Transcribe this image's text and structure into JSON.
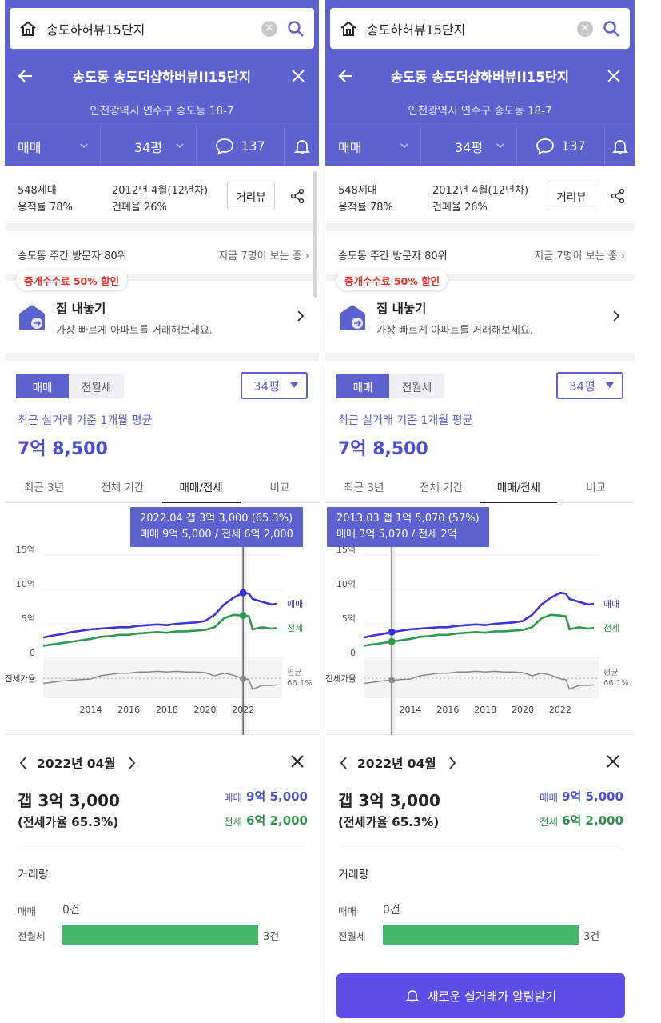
{
  "search": {
    "query": "송도하허뷰15단지"
  },
  "header": {
    "title": "송도동 송도더샵하버뷰II15단지",
    "address": "인천광역시 연수구 송도동 18-7"
  },
  "filterbar": {
    "trade": "매매",
    "size": "34평",
    "comments": "137"
  },
  "info": {
    "households": "548세대",
    "far": "용적률 78%",
    "built": "2012년 4월(12년차)",
    "bcr": "건폐율 26%",
    "distance_btn": "거리뷰"
  },
  "visitor": {
    "rank": "송도동 주간 방문자 80위",
    "viewing": "지금 7명이 보는 중"
  },
  "sell": {
    "promo": "중개수수료 50% 할인",
    "title": "집 내놓기",
    "subtitle": "가장 빠르게 아파트를 거래해보세요."
  },
  "price": {
    "seg_on": "매매",
    "seg_off": "전월세",
    "size_select": "34평",
    "avg_label": "최근 실거래 기준 1개월 평균",
    "avg_value": "7억 8,500"
  },
  "tabs": [
    "최근 3년",
    "전체 기간",
    "매매/전세",
    "비교"
  ],
  "tooltips": {
    "left": {
      "line1": "2022.04  갭 3억 3,000 (65.3%)",
      "line2": "매매 9억 5,000 / 전세 6억 2,000"
    },
    "right": {
      "line1": "2013.03  갭 1억 5,070 (57%)",
      "line2": "매매 3억 5,070 / 전세 2억"
    }
  },
  "chart_labels": {
    "sale": "매매",
    "jeonse": "전세",
    "ratio": "전세가율",
    "avg": "평균",
    "avg_value": "66.1%"
  },
  "chart_data": {
    "type": "line",
    "x": [
      2011.5,
      2012,
      2012.5,
      2013,
      2013.5,
      2014,
      2014.5,
      2015,
      2015.5,
      2016,
      2016.5,
      2017,
      2017.5,
      2018,
      2018.5,
      2019,
      2019.5,
      2020,
      2020.5,
      2021,
      2021.5,
      2022,
      2022.3,
      2022.5,
      2023,
      2023.5,
      2023.8
    ],
    "ylabel": "",
    "ylim": [
      0,
      15
    ],
    "y_ticks": [
      {
        "value": 0,
        "label": "0"
      },
      {
        "value": 5,
        "label": "5억"
      },
      {
        "value": 10,
        "label": "10억"
      },
      {
        "value": 15,
        "label": "15억"
      }
    ],
    "x_ticks": [
      2014,
      2016,
      2018,
      2020,
      2022
    ],
    "series": [
      {
        "name": "매매",
        "values": [
          3.0,
          3.3,
          3.5,
          3.8,
          4.0,
          4.2,
          4.3,
          4.4,
          4.5,
          4.5,
          4.7,
          4.8,
          4.9,
          4.8,
          5.0,
          5.1,
          5.2,
          5.4,
          6.3,
          7.8,
          8.8,
          9.5,
          9.4,
          8.6,
          8.2,
          7.8,
          7.9
        ]
      },
      {
        "name": "전세",
        "values": [
          1.8,
          2.0,
          2.2,
          2.4,
          2.6,
          2.8,
          3.1,
          3.2,
          3.4,
          3.4,
          3.6,
          3.7,
          3.8,
          3.7,
          3.9,
          3.9,
          4.0,
          4.1,
          4.5,
          5.8,
          6.3,
          6.2,
          6.1,
          4.2,
          4.5,
          4.3,
          4.4
        ]
      },
      {
        "name": "전세가율",
        "values": [
          58,
          60,
          62,
          63,
          64,
          65,
          70,
          72,
          74,
          74,
          76,
          76,
          77,
          76,
          77,
          76,
          76,
          75,
          70,
          74,
          71,
          65.3,
          64,
          49,
          55,
          55,
          56
        ]
      }
    ],
    "ratio_avg": 66.1
  },
  "detail": {
    "month": "2022년 04월",
    "gap": "갭 3억 3,000",
    "ratio": "(전세가율 65.3%)",
    "sale_label": "매매",
    "sale_value": "9억 5,000",
    "jeonse_label": "전세",
    "jeonse_value": "6억 2,000"
  },
  "volume": {
    "title": "거래량",
    "sale_label": "매매",
    "sale_count": "0건",
    "rent_label": "전월세",
    "rent_count": "3건",
    "rent_fraction": 0.8
  },
  "alert_button": "새로운 실거래가 알림받기",
  "colors": {
    "brand": "#5d62d0",
    "sale": "#3a36d8",
    "jeonse": "#2e8f4a"
  }
}
